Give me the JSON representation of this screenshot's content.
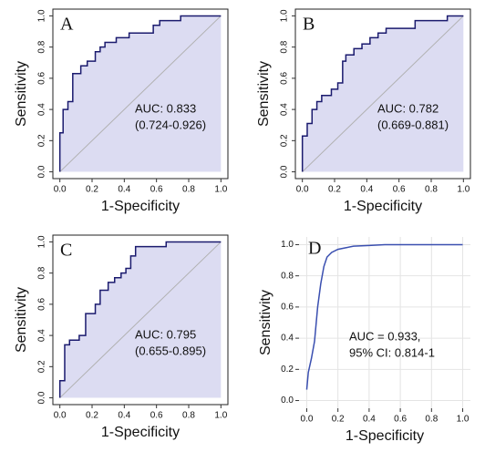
{
  "chart_data": [
    {
      "type": "line",
      "label": "A",
      "annotations": [
        "AUC: 0.833",
        "(0.724-0.926)"
      ],
      "xlabel": "1-Specificity",
      "ylabel": "Sensitivity",
      "xlim": [
        0,
        1
      ],
      "ylim": [
        0,
        1
      ],
      "xticks": [
        {
          "value": 0,
          "label": "0.0"
        },
        0.2,
        0.4,
        0.6,
        0.8,
        {
          "value": 1,
          "label": "1.0"
        }
      ],
      "yticks": [
        {
          "value": 0,
          "label": "0.0"
        },
        0.2,
        0.4,
        0.6,
        0.8,
        {
          "value": 1,
          "label": "1.0"
        }
      ],
      "grid": false,
      "fill": "#dcdcf2",
      "x": [
        0,
        0,
        0.02,
        0.02,
        0.05,
        0.05,
        0.08,
        0.08,
        0.13,
        0.13,
        0.17,
        0.17,
        0.22,
        0.22,
        0.25,
        0.25,
        0.28,
        0.28,
        0.35,
        0.35,
        0.43,
        0.43,
        0.58,
        0.58,
        0.62,
        0.62,
        0.75,
        0.75,
        1
      ],
      "series": [
        {
          "color": "#1a1a6e",
          "values": [
            0,
            0.25,
            0.25,
            0.4,
            0.4,
            0.45,
            0.45,
            0.63,
            0.63,
            0.68,
            0.68,
            0.71,
            0.71,
            0.77,
            0.77,
            0.8,
            0.8,
            0.83,
            0.83,
            0.86,
            0.86,
            0.89,
            0.89,
            0.94,
            0.94,
            0.97,
            0.97,
            1,
            1
          ]
        }
      ]
    },
    {
      "type": "line",
      "label": "B",
      "annotations": [
        "AUC: 0.782",
        "(0.669-0.881)"
      ],
      "xlabel": "1-Specificity",
      "ylabel": "Sensitivity",
      "xlim": [
        0,
        1
      ],
      "ylim": [
        0,
        1
      ],
      "xticks": [
        {
          "value": 0,
          "label": "0.0"
        },
        0.2,
        0.4,
        0.6,
        0.8,
        {
          "value": 1,
          "label": "1.0"
        }
      ],
      "yticks": [
        {
          "value": 0,
          "label": "0.0"
        },
        0.2,
        0.4,
        0.6,
        0.8,
        {
          "value": 1,
          "label": "1.0"
        }
      ],
      "grid": false,
      "fill": "#dcdcf2",
      "x": [
        0,
        0,
        0.03,
        0.03,
        0.06,
        0.06,
        0.09,
        0.09,
        0.12,
        0.12,
        0.18,
        0.18,
        0.22,
        0.22,
        0.25,
        0.25,
        0.27,
        0.27,
        0.32,
        0.32,
        0.37,
        0.37,
        0.42,
        0.42,
        0.47,
        0.47,
        0.52,
        0.52,
        0.7,
        0.7,
        0.9,
        0.9,
        1
      ],
      "series": [
        {
          "color": "#1a1a6e",
          "values": [
            0,
            0.23,
            0.23,
            0.31,
            0.31,
            0.4,
            0.4,
            0.45,
            0.45,
            0.49,
            0.49,
            0.53,
            0.53,
            0.57,
            0.57,
            0.71,
            0.71,
            0.75,
            0.75,
            0.79,
            0.79,
            0.82,
            0.82,
            0.86,
            0.86,
            0.89,
            0.89,
            0.92,
            0.92,
            0.97,
            0.97,
            1,
            1
          ]
        }
      ]
    },
    {
      "type": "line",
      "label": "C",
      "annotations": [
        "AUC: 0.795",
        "(0.655-0.895)"
      ],
      "xlabel": "1-Specificity",
      "ylabel": "Sensitivity",
      "xlim": [
        0,
        1
      ],
      "ylim": [
        0,
        1
      ],
      "xticks": [
        {
          "value": 0,
          "label": "0.0"
        },
        0.2,
        0.4,
        0.6,
        0.8,
        {
          "value": 1,
          "label": "1.0"
        }
      ],
      "yticks": [
        {
          "value": 0,
          "label": "0.0"
        },
        0.2,
        0.4,
        0.6,
        0.8,
        {
          "value": 1,
          "label": "1.0"
        }
      ],
      "grid": false,
      "fill": "#dcdcf2",
      "x": [
        0,
        0,
        0.03,
        0.03,
        0.06,
        0.06,
        0.12,
        0.12,
        0.16,
        0.16,
        0.22,
        0.22,
        0.25,
        0.25,
        0.3,
        0.3,
        0.34,
        0.34,
        0.38,
        0.38,
        0.41,
        0.41,
        0.44,
        0.44,
        0.47,
        0.47,
        0.66,
        0.66,
        1
      ],
      "series": [
        {
          "color": "#1a1a6e",
          "values": [
            0,
            0.11,
            0.11,
            0.34,
            0.34,
            0.37,
            0.37,
            0.4,
            0.4,
            0.54,
            0.54,
            0.6,
            0.6,
            0.69,
            0.69,
            0.74,
            0.74,
            0.77,
            0.77,
            0.8,
            0.8,
            0.83,
            0.83,
            0.91,
            0.91,
            0.97,
            0.97,
            1,
            1
          ]
        }
      ]
    },
    {
      "type": "line",
      "label": "D",
      "annotations": [
        "AUC = 0.933,",
        "95% CI: 0.814-1"
      ],
      "xlabel": "1-Specificity",
      "ylabel": "Sensitivity",
      "xlim": [
        0,
        1
      ],
      "ylim": [
        0,
        1
      ],
      "xticks": [
        {
          "value": 0,
          "label": "0.0"
        },
        0.2,
        0.4,
        0.6,
        0.8,
        {
          "value": 1,
          "label": "1.0"
        }
      ],
      "yticks": [
        {
          "value": 0,
          "label": "0.0"
        },
        0.2,
        0.4,
        0.6,
        0.8,
        {
          "value": 1,
          "label": "1.0"
        }
      ],
      "grid": true,
      "x": [
        0,
        0.01,
        0.03,
        0.05,
        0.07,
        0.09,
        0.11,
        0.13,
        0.16,
        0.2,
        0.25,
        0.3,
        0.4,
        0.5,
        0.6,
        0.8,
        1
      ],
      "series": [
        {
          "color": "#3a4fb0",
          "values": [
            0.07,
            0.18,
            0.27,
            0.38,
            0.6,
            0.75,
            0.86,
            0.92,
            0.95,
            0.97,
            0.98,
            0.99,
            0.995,
            1,
            1,
            1,
            1
          ]
        }
      ]
    }
  ]
}
